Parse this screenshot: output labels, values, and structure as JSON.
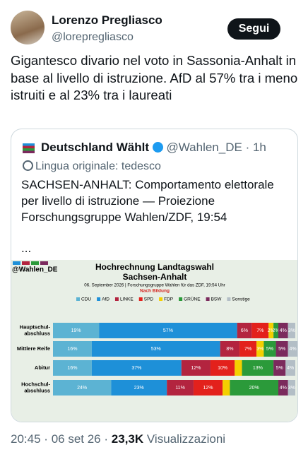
{
  "author": {
    "name": "Lorenzo Pregliasco",
    "handle": "@lorepregliasco",
    "follow": "Segui"
  },
  "text": "Gigantesco divario nel voto in Sassonia-Anhalt in base al livello di istruzione. AfD al 57% tra i meno istruiti e al 23% tra i laureati",
  "quote": {
    "name": "Deutschland Wählt",
    "handle": "@Wahlen_DE",
    "separator": "·",
    "time": "1h",
    "translation": "Lingua originale: tedesco",
    "text": "SACHSEN-ANHALT: Comportamento elettorale per livello di istruzione — Proiezione Forschungsgruppe Wahlen/ZDF, 19:54",
    "more": "...",
    "chart": {
      "type": "stacked-bar",
      "watermark": "@Wahlen_DE",
      "title": [
        "Hochrechnung Landtagswahl",
        "Sachsen-Anhalt"
      ],
      "subtitle": "06. September 2026 | Forschungsgruppe Wahlen für das ZDF, 19:54 Uhr",
      "subheading": "Nach Bildung",
      "categories": [
        [
          "Hauptschul-",
          "abschluss"
        ],
        [
          "Mittlere Reife"
        ],
        [
          "Abitur"
        ],
        [
          "Hochschul-",
          "abschluss"
        ]
      ],
      "xlim": [
        0,
        100
      ],
      "series": [
        {
          "name": "CDU",
          "color": "#5cb3d3",
          "values": [
            19,
            16,
            16,
            24
          ],
          "value_labels": [
            "19%",
            "16%",
            "16%",
            "24%"
          ]
        },
        {
          "name": "AfD",
          "color": "#1e90d8",
          "values": [
            57,
            53,
            37,
            23
          ],
          "value_labels": [
            "57%",
            "53%",
            "37%",
            "23%"
          ]
        },
        {
          "name": "LINKE",
          "color": "#b3243f",
          "values": [
            6,
            8,
            12,
            11
          ],
          "value_labels": [
            "6%",
            "8%",
            "12%",
            "11%"
          ]
        },
        {
          "name": "SPD",
          "color": "#e3211c",
          "values": [
            7,
            7,
            10,
            12
          ],
          "value_labels": [
            "7%",
            "7%",
            "10%",
            "12%"
          ]
        },
        {
          "name": "FDP",
          "color": "#f4cf00",
          "values": [
            2,
            3,
            3,
            3
          ],
          "value_labels": [
            "2%",
            "3%",
            null,
            null
          ]
        },
        {
          "name": "GRÜNE",
          "color": "#2b9a3a",
          "values": [
            2,
            5,
            13,
            20
          ],
          "value_labels": [
            "2%",
            "5%",
            "13%",
            "20%"
          ]
        },
        {
          "name": "BSW",
          "color": "#7b2a5d",
          "values": [
            4,
            5,
            5,
            4
          ],
          "value_labels": [
            "4%",
            "5%",
            "5%",
            "4%"
          ]
        },
        {
          "name": "Sonstige",
          "color": "#b3bec6",
          "values": [
            3,
            4,
            4,
            3
          ],
          "value_labels": [
            "3%",
            "4%",
            "4%",
            "3%"
          ]
        }
      ]
    }
  },
  "footer": {
    "time": "20:45",
    "separator": "·",
    "date": "06 set 26",
    "views": "23,3K",
    "views_label": "Visualizzazioni"
  }
}
